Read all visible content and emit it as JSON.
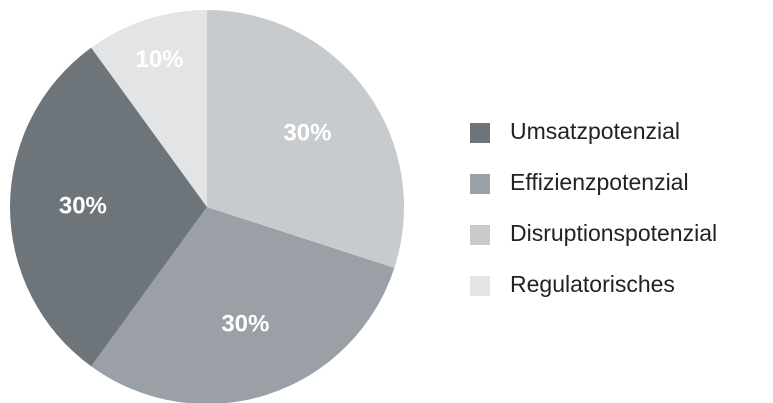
{
  "chart_data": {
    "type": "pie",
    "categories": [
      "Umsatzpotenzial",
      "Effizienzpotenzial",
      "Disruptionspotenzial",
      "Regulatorisches"
    ],
    "values": [
      30,
      30,
      30,
      10
    ],
    "value_labels": [
      "30%",
      "30%",
      "30%",
      "10%"
    ],
    "colors": [
      "#6d757b",
      "#9aa0a5",
      "#c8cbce",
      "#e2e4e6"
    ],
    "legend": "right"
  }
}
